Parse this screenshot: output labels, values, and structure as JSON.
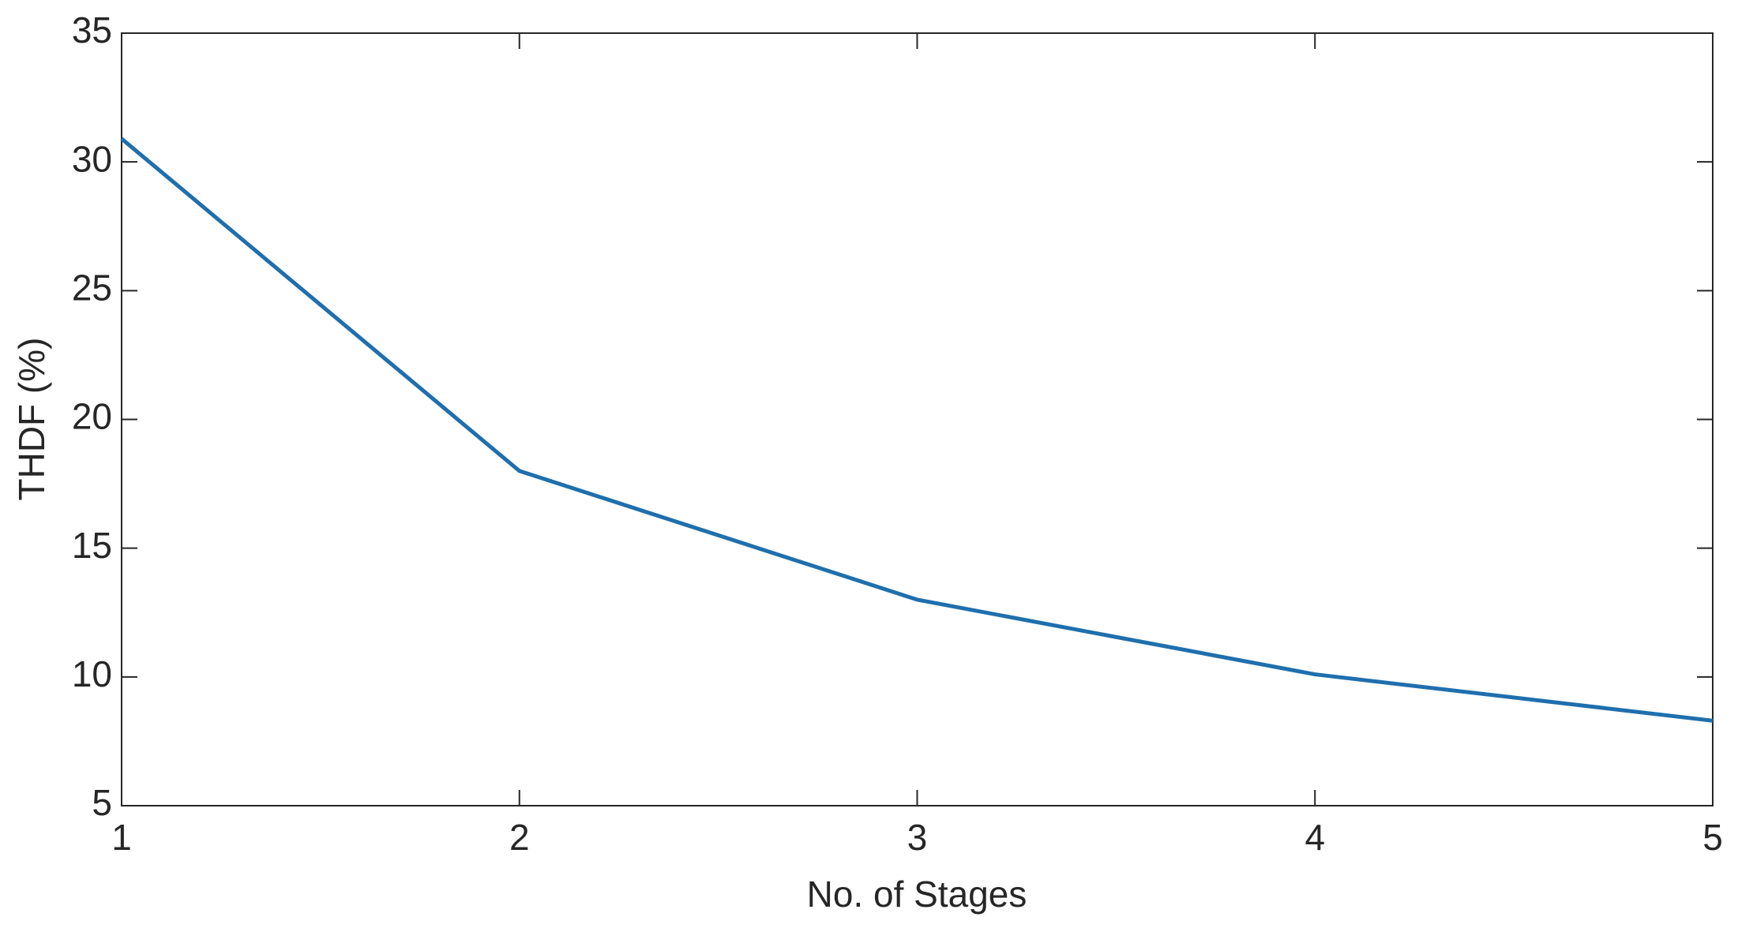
{
  "chart_data": {
    "type": "line",
    "x_label": "No. of Stages",
    "y_label": "THDF (%)",
    "x": [
      1,
      2,
      3,
      4,
      5
    ],
    "series": [
      {
        "color": "#1f6fad",
        "values": [
          30.9,
          18,
          13,
          10.1,
          8.3
        ]
      }
    ],
    "xlim": [
      1,
      5
    ],
    "xticks": [
      1,
      2,
      3,
      4,
      5
    ],
    "ylim": [
      5,
      35
    ],
    "yticks": [
      5,
      10,
      15,
      20,
      25,
      30,
      35
    ],
    "grid": false
  }
}
